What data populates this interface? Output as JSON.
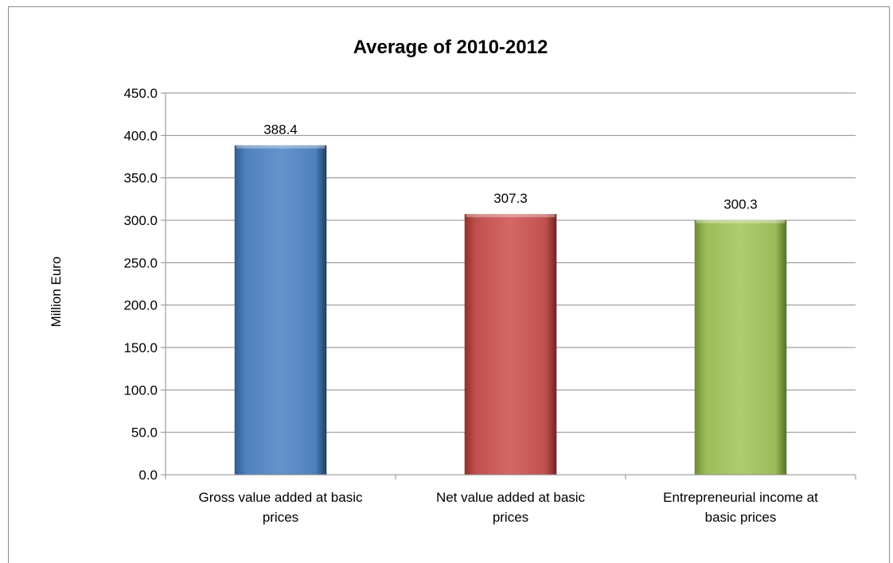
{
  "chart_data": {
    "type": "bar",
    "title": "Average of 2010-2012",
    "xlabel": "",
    "ylabel": "Million Euro",
    "ylim": [
      0,
      450
    ],
    "yticks": [
      "0.0",
      "50.0",
      "100.0",
      "150.0",
      "200.0",
      "250.0",
      "300.0",
      "350.0",
      "400.0",
      "450.0"
    ],
    "grid": true,
    "legend": "none",
    "categories": [
      [
        "Gross value added at basic",
        "prices"
      ],
      [
        "Net value added at basic",
        "prices"
      ],
      [
        "Entrepreneurial income at",
        "basic prices"
      ]
    ],
    "values": [
      388.4,
      307.3,
      300.3
    ],
    "data_labels": [
      "388.4",
      "307.3",
      "300.3"
    ],
    "colors": [
      "#4f81bd",
      "#c0504d",
      "#9bbb59"
    ]
  }
}
